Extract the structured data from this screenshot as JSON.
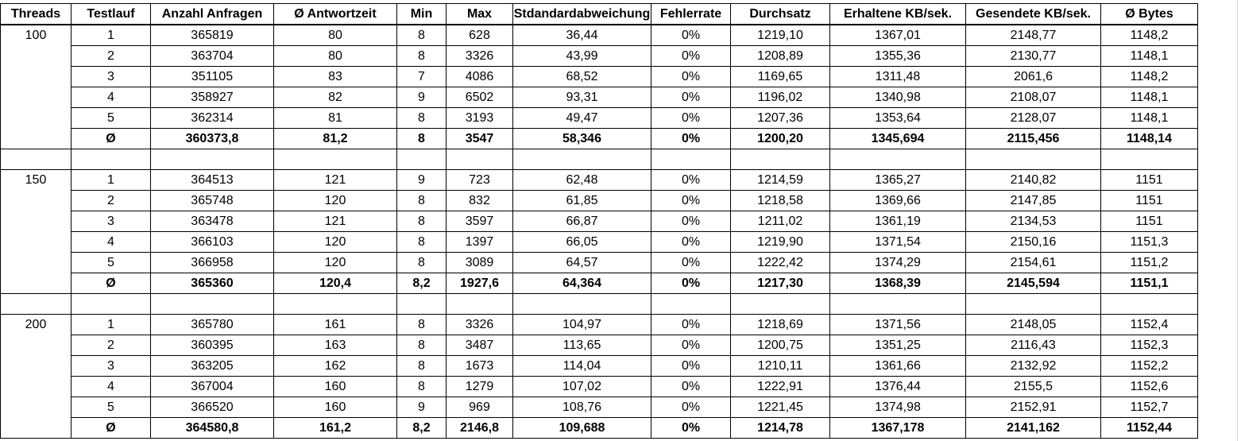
{
  "headers": [
    "Threads",
    "Testlauf",
    "Anzahl Anfragen",
    "Ø Antwortzeit",
    "Min",
    "Max",
    "Stdandardabweichung",
    "Fehlerrate",
    "Durchsatz",
    "Erhaltene KB/sek.",
    "Gesendete KB/sek.",
    "Ø Bytes"
  ],
  "groups": [
    {
      "threads": "100",
      "rows": [
        [
          "1",
          "365819",
          "80",
          "8",
          "628",
          "36,44",
          "0%",
          "1219,10",
          "1367,01",
          "2148,77",
          "1148,2"
        ],
        [
          "2",
          "363704",
          "80",
          "8",
          "3326",
          "43,99",
          "0%",
          "1208,89",
          "1355,36",
          "2130,77",
          "1148,1"
        ],
        [
          "3",
          "351105",
          "83",
          "7",
          "4086",
          "68,52",
          "0%",
          "1169,65",
          "1311,48",
          "2061,6",
          "1148,2"
        ],
        [
          "4",
          "358927",
          "82",
          "9",
          "6502",
          "93,31",
          "0%",
          "1196,02",
          "1340,98",
          "2108,07",
          "1148,1"
        ],
        [
          "5",
          "362314",
          "81",
          "8",
          "3193",
          "49,47",
          "0%",
          "1207,36",
          "1353,64",
          "2128,07",
          "1148,1"
        ]
      ],
      "avg": [
        "Ø",
        "360373,8",
        "81,2",
        "8",
        "3547",
        "58,346",
        "0%",
        "1200,20",
        "1345,694",
        "2115,456",
        "1148,14"
      ]
    },
    {
      "threads": "150",
      "rows": [
        [
          "1",
          "364513",
          "121",
          "9",
          "723",
          "62,48",
          "0%",
          "1214,59",
          "1365,27",
          "2140,82",
          "1151"
        ],
        [
          "2",
          "365748",
          "120",
          "8",
          "832",
          "61,85",
          "0%",
          "1218,58",
          "1369,66",
          "2147,85",
          "1151"
        ],
        [
          "3",
          "363478",
          "121",
          "8",
          "3597",
          "66,87",
          "0%",
          "1211,02",
          "1361,19",
          "2134,53",
          "1151"
        ],
        [
          "4",
          "366103",
          "120",
          "8",
          "1397",
          "66,05",
          "0%",
          "1219,90",
          "1371,54",
          "2150,16",
          "1151,3"
        ],
        [
          "5",
          "366958",
          "120",
          "8",
          "3089",
          "64,57",
          "0%",
          "1222,42",
          "1374,29",
          "2154,61",
          "1151,2"
        ]
      ],
      "avg": [
        "Ø",
        "365360",
        "120,4",
        "8,2",
        "1927,6",
        "64,364",
        "0%",
        "1217,30",
        "1368,39",
        "2145,594",
        "1151,1"
      ]
    },
    {
      "threads": "200",
      "rows": [
        [
          "1",
          "365780",
          "161",
          "8",
          "3326",
          "104,97",
          "0%",
          "1218,69",
          "1371,56",
          "2148,05",
          "1152,4"
        ],
        [
          "2",
          "360395",
          "163",
          "8",
          "3487",
          "113,65",
          "0%",
          "1200,75",
          "1351,25",
          "2116,43",
          "1152,3"
        ],
        [
          "3",
          "363205",
          "162",
          "8",
          "1673",
          "114,04",
          "0%",
          "1210,11",
          "1361,66",
          "2132,92",
          "1152,2"
        ],
        [
          "4",
          "367004",
          "160",
          "8",
          "1279",
          "107,02",
          "0%",
          "1222,91",
          "1376,44",
          "2155,5",
          "1152,6"
        ],
        [
          "5",
          "366520",
          "160",
          "9",
          "969",
          "108,76",
          "0%",
          "1221,45",
          "1374,98",
          "2152,91",
          "1152,7"
        ]
      ],
      "avg": [
        "Ø",
        "364580,8",
        "161,2",
        "8,2",
        "2146,8",
        "109,688",
        "0%",
        "1214,78",
        "1367,178",
        "2141,162",
        "1152,44"
      ]
    }
  ]
}
